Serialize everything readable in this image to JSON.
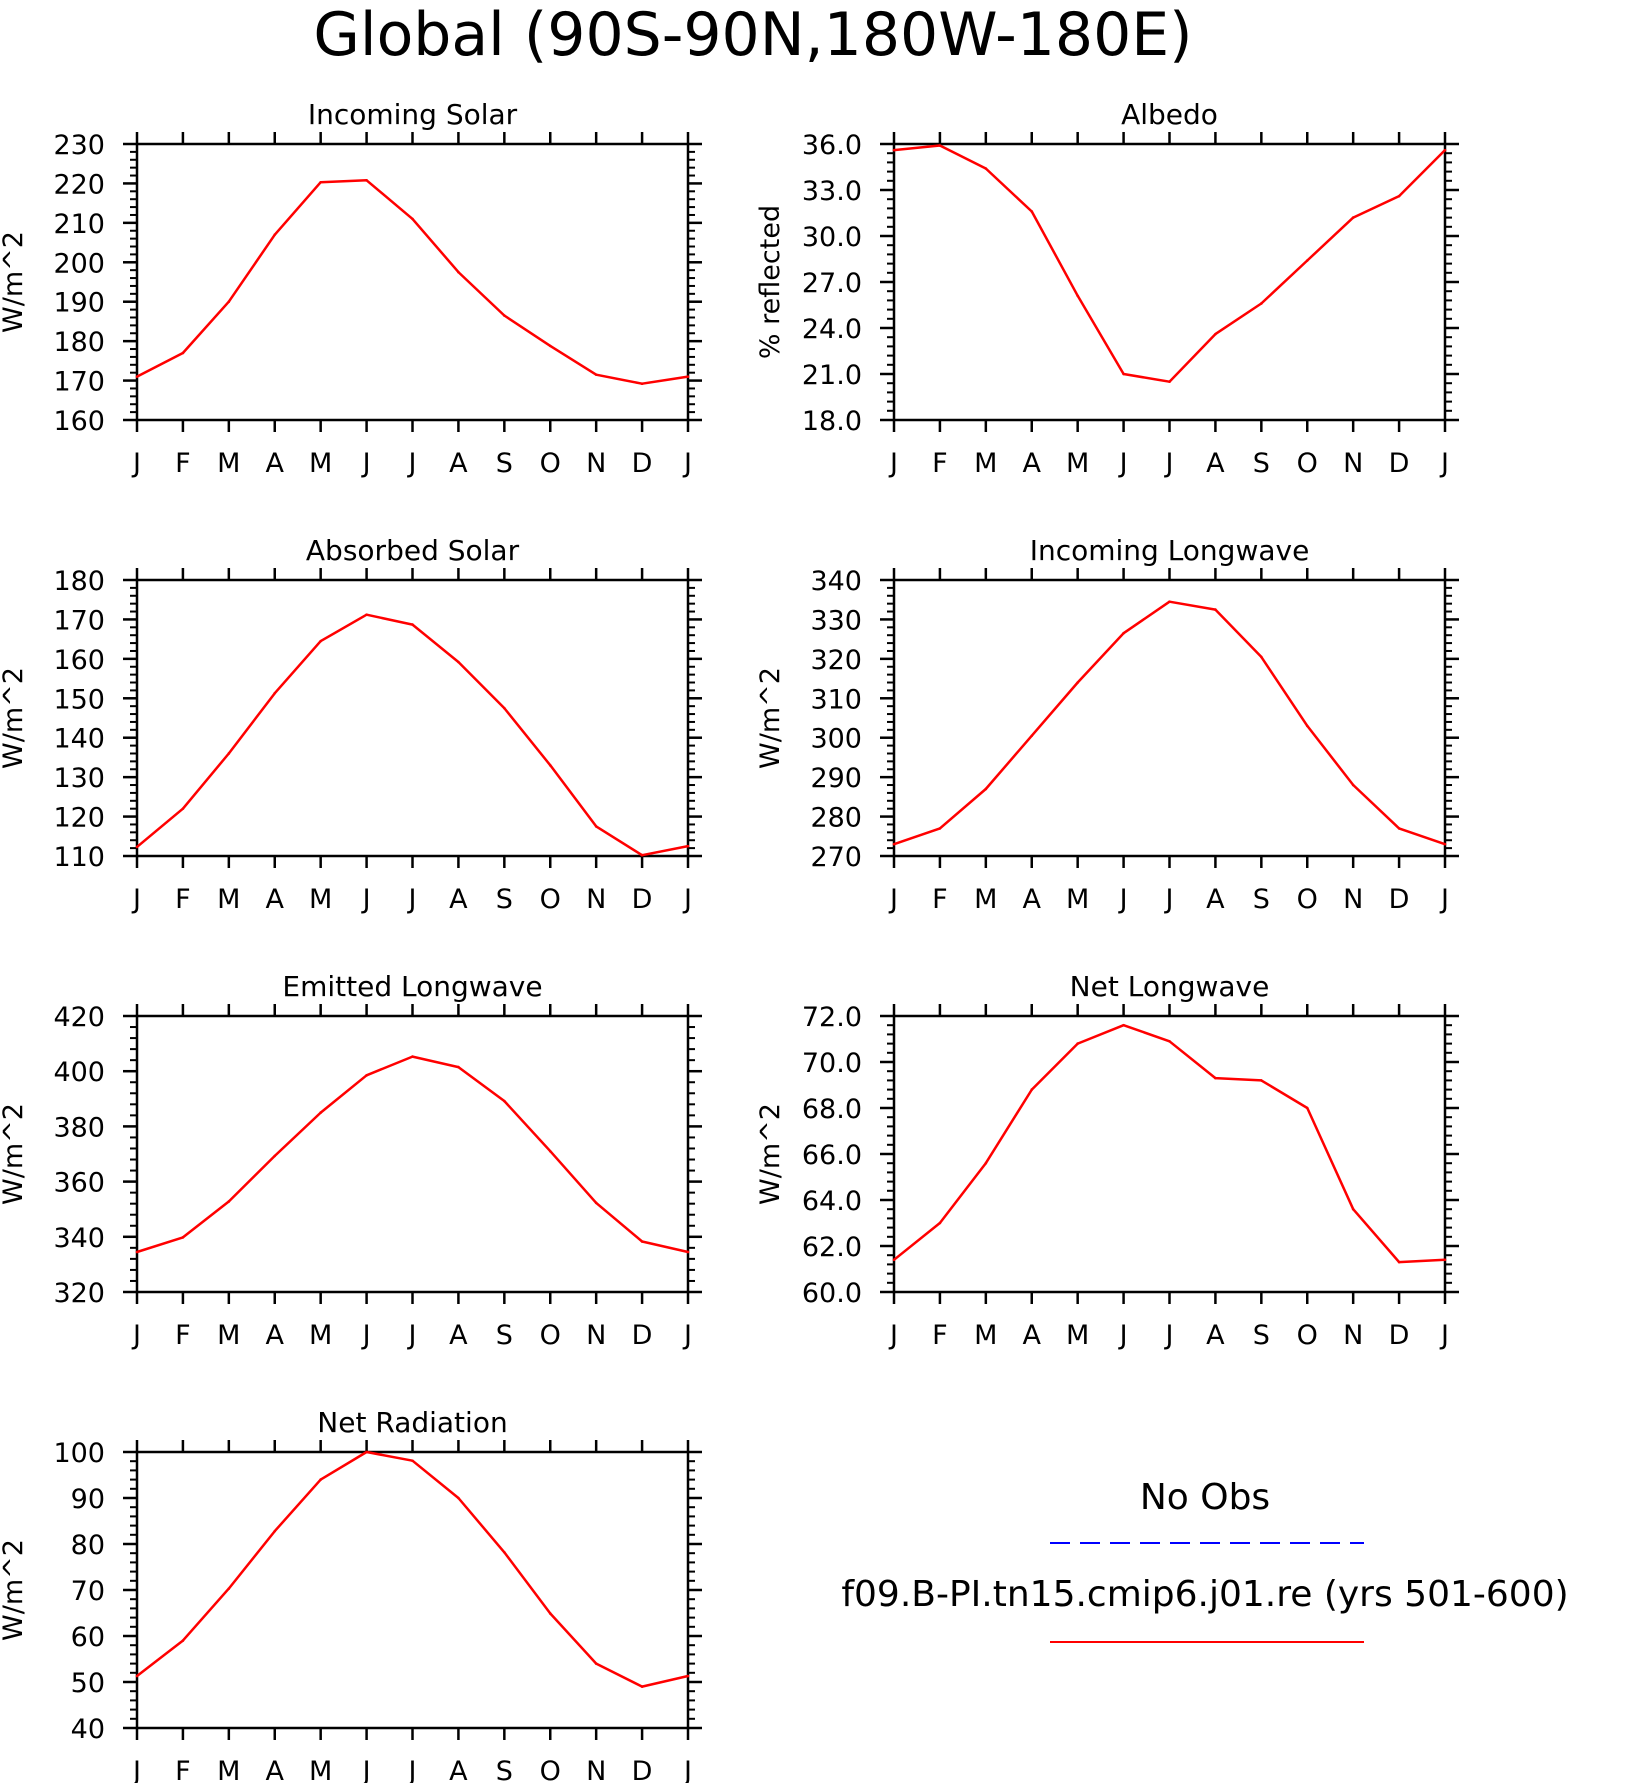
{
  "page": {
    "title": "Global (90S-90N,180W-180E)"
  },
  "colors": {
    "model": "#ff0000",
    "obs": "#0000ff",
    "axes": "#000000"
  },
  "legend": {
    "obs_label": "No Obs",
    "model_label": "f09.B-PI.tn15.cmip6.j01.re (yrs 501-600)"
  },
  "chart_data": [
    {
      "id": "incoming-solar",
      "type": "line",
      "title": "Incoming Solar",
      "ylabel": "W/m^2",
      "categories": [
        "J",
        "F",
        "M",
        "A",
        "M",
        "J",
        "J",
        "A",
        "S",
        "O",
        "N",
        "D",
        "J"
      ],
      "ylim": [
        160,
        230
      ],
      "yticks": [
        160,
        170,
        180,
        190,
        200,
        210,
        220,
        230
      ],
      "ytick_labels": [
        "160",
        "170",
        "180",
        "190",
        "200",
        "210",
        "220",
        "230"
      ],
      "series": [
        {
          "values": [
            171,
            177,
            190,
            207,
            220.3,
            220.8,
            211,
            197.5,
            186.5,
            178.8,
            171.5,
            169.2,
            171
          ]
        }
      ]
    },
    {
      "id": "albedo",
      "type": "line",
      "title": "Albedo",
      "ylabel": "% reflected",
      "categories": [
        "J",
        "F",
        "M",
        "A",
        "M",
        "J",
        "J",
        "A",
        "S",
        "O",
        "N",
        "D",
        "J"
      ],
      "ylim": [
        18,
        36
      ],
      "yticks": [
        18,
        21,
        24,
        27,
        30,
        33,
        36
      ],
      "ytick_labels": [
        "18.0",
        "21.0",
        "24.0",
        "27.0",
        "30.0",
        "33.0",
        "36.0"
      ],
      "series": [
        {
          "values": [
            35.6,
            35.9,
            34.4,
            31.6,
            26.1,
            21.0,
            20.5,
            23.6,
            25.6,
            28.4,
            31.2,
            32.6,
            35.6
          ]
        }
      ]
    },
    {
      "id": "absorbed-solar",
      "type": "line",
      "title": "Absorbed Solar",
      "ylabel": "W/m^2",
      "categories": [
        "J",
        "F",
        "M",
        "A",
        "M",
        "J",
        "J",
        "A",
        "S",
        "O",
        "N",
        "D",
        "J"
      ],
      "ylim": [
        110,
        180
      ],
      "yticks": [
        110,
        120,
        130,
        140,
        150,
        160,
        170,
        180
      ],
      "ytick_labels": [
        "110",
        "120",
        "130",
        "140",
        "150",
        "160",
        "170",
        "180"
      ],
      "series": [
        {
          "values": [
            112.3,
            122,
            136,
            151.3,
            164.5,
            171.2,
            168.7,
            159.2,
            147.5,
            133,
            117.5,
            110.2,
            112.5
          ]
        }
      ]
    },
    {
      "id": "incoming-longwave",
      "type": "line",
      "title": "Incoming Longwave",
      "ylabel": "W/m^2",
      "categories": [
        "J",
        "F",
        "M",
        "A",
        "M",
        "J",
        "J",
        "A",
        "S",
        "O",
        "N",
        "D",
        "J"
      ],
      "ylim": [
        270,
        340
      ],
      "yticks": [
        270,
        280,
        290,
        300,
        310,
        320,
        330,
        340
      ],
      "ytick_labels": [
        "270",
        "280",
        "290",
        "300",
        "310",
        "320",
        "330",
        "340"
      ],
      "series": [
        {
          "values": [
            273,
            277,
            287,
            300.5,
            314,
            326.5,
            334.5,
            332.5,
            320.5,
            303,
            288,
            277,
            273
          ]
        }
      ]
    },
    {
      "id": "emitted-longwave",
      "type": "line",
      "title": "Emitted Longwave",
      "ylabel": "W/m^2",
      "categories": [
        "J",
        "F",
        "M",
        "A",
        "M",
        "J",
        "J",
        "A",
        "S",
        "O",
        "N",
        "D",
        "J"
      ],
      "ylim": [
        320,
        420
      ],
      "yticks": [
        320,
        340,
        360,
        380,
        400,
        420
      ],
      "ytick_labels": [
        "320",
        "340",
        "360",
        "380",
        "400",
        "420"
      ],
      "series": [
        {
          "values": [
            334.5,
            339.8,
            352.8,
            369.3,
            385,
            398.5,
            405.3,
            401.5,
            389.2,
            371,
            352.3,
            338.3,
            334.5
          ]
        }
      ]
    },
    {
      "id": "net-longwave",
      "type": "line",
      "title": "Net Longwave",
      "ylabel": "W/m^2",
      "categories": [
        "J",
        "F",
        "M",
        "A",
        "M",
        "J",
        "J",
        "A",
        "S",
        "O",
        "N",
        "D",
        "J"
      ],
      "ylim": [
        60,
        72
      ],
      "yticks": [
        60,
        62,
        64,
        66,
        68,
        70,
        72
      ],
      "ytick_labels": [
        "60.0",
        "62.0",
        "64.0",
        "66.0",
        "68.0",
        "70.0",
        "72.0"
      ],
      "series": [
        {
          "values": [
            61.4,
            63.0,
            65.6,
            68.8,
            70.8,
            71.6,
            70.9,
            69.3,
            69.2,
            68.0,
            63.6,
            61.3,
            61.4
          ]
        }
      ]
    },
    {
      "id": "net-radiation",
      "type": "line",
      "title": "Net Radiation",
      "ylabel": "W/m^2",
      "categories": [
        "J",
        "F",
        "M",
        "A",
        "M",
        "J",
        "J",
        "A",
        "S",
        "O",
        "N",
        "D",
        "J"
      ],
      "ylim": [
        40,
        100
      ],
      "yticks": [
        40,
        50,
        60,
        70,
        80,
        90,
        100
      ],
      "ytick_labels": [
        "40",
        "50",
        "60",
        "70",
        "80",
        "90",
        "100"
      ],
      "series": [
        {
          "values": [
            51.3,
            59,
            70.3,
            82.8,
            94,
            100,
            98.1,
            90,
            78.2,
            64.9,
            54,
            49,
            51.3
          ]
        }
      ]
    }
  ]
}
